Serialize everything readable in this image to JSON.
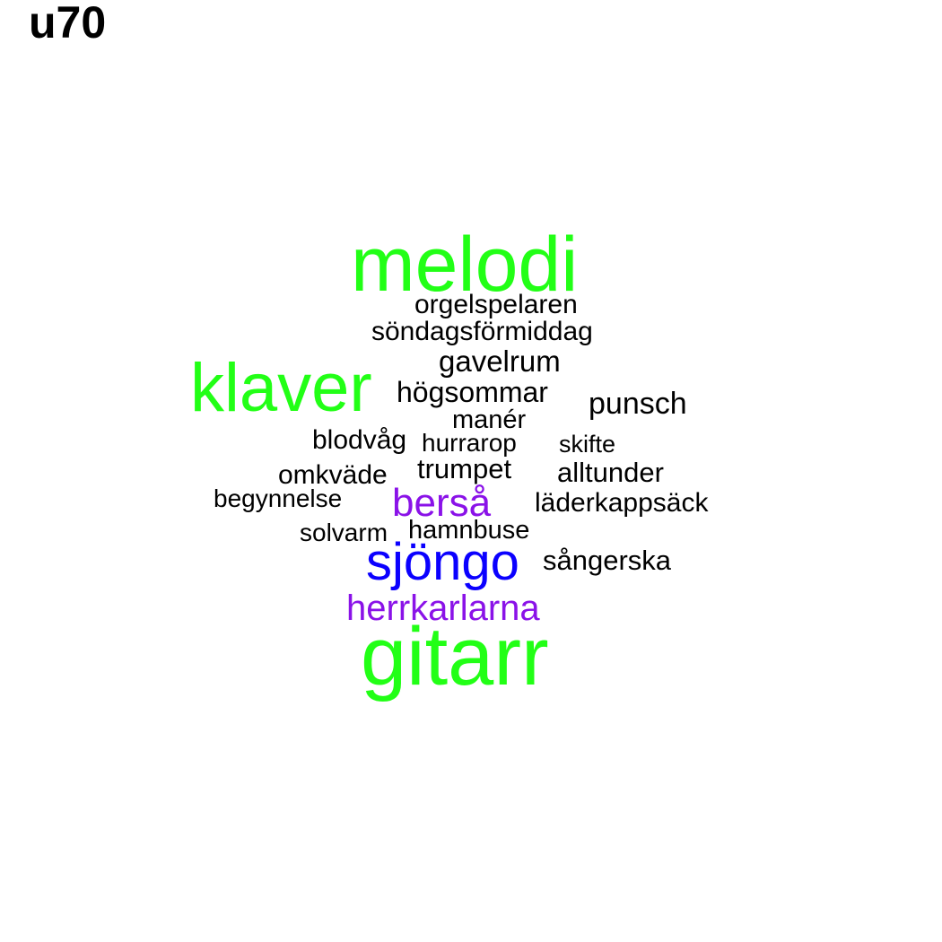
{
  "title": "u70",
  "colors": {
    "green": "#22ff16",
    "blue": "#0b00ff",
    "purple": "#8a12e8",
    "black": "#000000"
  },
  "words": [
    {
      "text": "melodi",
      "color": "green"
    },
    {
      "text": "orgelspelaren",
      "color": "black"
    },
    {
      "text": "söndagsförmiddag",
      "color": "black"
    },
    {
      "text": "gavelrum",
      "color": "black"
    },
    {
      "text": "klaver",
      "color": "green"
    },
    {
      "text": "högsommar",
      "color": "black"
    },
    {
      "text": "punsch",
      "color": "black"
    },
    {
      "text": "manér",
      "color": "black"
    },
    {
      "text": "blodvåg",
      "color": "black"
    },
    {
      "text": "hurrarop",
      "color": "black"
    },
    {
      "text": "skifte",
      "color": "black"
    },
    {
      "text": "trumpet",
      "color": "black"
    },
    {
      "text": "alltunder",
      "color": "black"
    },
    {
      "text": "omkväde",
      "color": "black"
    },
    {
      "text": "begynnelse",
      "color": "black"
    },
    {
      "text": "berså",
      "color": "purple"
    },
    {
      "text": "läderkappsäck",
      "color": "black"
    },
    {
      "text": "solvarm",
      "color": "black"
    },
    {
      "text": "hamnbuse",
      "color": "black"
    },
    {
      "text": "sjöngo",
      "color": "blue"
    },
    {
      "text": "sångerska",
      "color": "black"
    },
    {
      "text": "herrkarlarna",
      "color": "purple"
    },
    {
      "text": "gitarr",
      "color": "green"
    }
  ]
}
